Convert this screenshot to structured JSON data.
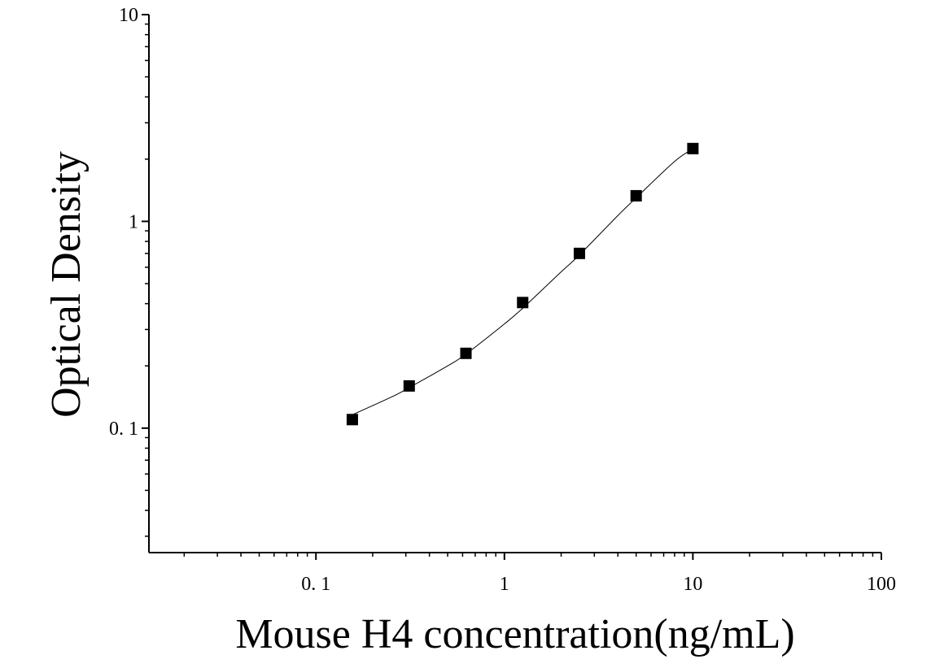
{
  "chart_data": {
    "type": "scatter",
    "xlabel": "Mouse H4 concentration(ng/mL)",
    "ylabel": "Optical Density",
    "x_scale": "log",
    "y_scale": "log",
    "xlim": [
      0.013,
      100
    ],
    "ylim": [
      0.025,
      10
    ],
    "x_ticks": [
      {
        "value": 0.1,
        "label": "0. 1"
      },
      {
        "value": 1,
        "label": "1"
      },
      {
        "value": 10,
        "label": "10"
      },
      {
        "value": 100,
        "label": "100"
      }
    ],
    "y_ticks": [
      {
        "value": 0.1,
        "label": "0. 1"
      },
      {
        "value": 1,
        "label": "1"
      },
      {
        "value": 10,
        "label": "10"
      }
    ],
    "grid": false,
    "legend": "none",
    "series": [
      {
        "x": [
          0.156,
          0.3125,
          0.625,
          1.25,
          2.5,
          5,
          10
        ],
        "y": [
          0.11,
          0.16,
          0.23,
          0.405,
          0.7,
          1.33,
          2.25
        ],
        "marker": "square",
        "color": "#000000"
      }
    ],
    "fit_curve": {
      "type": "line",
      "color": "#000000",
      "x": [
        0.156,
        0.25,
        0.3125,
        0.5,
        0.625,
        1,
        1.25,
        2,
        2.5,
        4,
        5,
        8,
        10
      ],
      "y": [
        0.116,
        0.141,
        0.157,
        0.2,
        0.228,
        0.319,
        0.38,
        0.57,
        0.688,
        1.067,
        1.3,
        1.95,
        2.24
      ]
    }
  }
}
